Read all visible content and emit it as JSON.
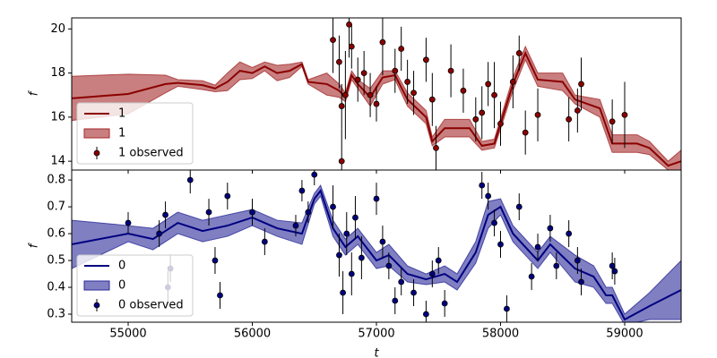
{
  "chart_data": [
    {
      "type": "line",
      "ylabel": "f",
      "legend": "lower left",
      "xlim": [
        54545,
        59455
      ],
      "xticks": [
        55000,
        56000,
        57000,
        58000,
        59000
      ],
      "ylim": [
        13.6,
        20.5
      ],
      "yticks": [
        14,
        16,
        18,
        20
      ],
      "series": [
        {
          "type": "line",
          "name": "1",
          "color": "#8b0000",
          "x": [
            54545,
            55000,
            55300,
            55400,
            55600,
            55700,
            55800,
            55900,
            56000,
            56100,
            56200,
            56300,
            56400,
            56450,
            56600,
            56700,
            56750,
            56800,
            56850,
            56950,
            57050,
            57150,
            57250,
            57400,
            57450,
            57550,
            57750,
            57850,
            57950,
            58100,
            58200,
            58300,
            58500,
            58600,
            58800,
            58900,
            59100,
            59200,
            59350,
            59455
          ],
          "values": [
            16.85,
            17.05,
            17.5,
            17.55,
            17.45,
            17.3,
            17.6,
            18.1,
            18.0,
            18.3,
            18.0,
            18.1,
            18.4,
            17.6,
            17.5,
            17.2,
            16.9,
            17.9,
            17.5,
            16.9,
            17.8,
            17.9,
            16.8,
            16.0,
            14.9,
            15.5,
            15.5,
            14.7,
            14.8,
            17.5,
            18.9,
            17.7,
            17.6,
            16.8,
            16.4,
            14.8,
            14.8,
            14.6,
            13.8,
            14.0
          ]
        },
        {
          "type": "band",
          "name": "1",
          "color": "#a52a2a",
          "x": [
            54545,
            55000,
            55300,
            55400,
            55600,
            55700,
            55800,
            55900,
            56000,
            56100,
            56200,
            56300,
            56400,
            56450,
            56600,
            56700,
            56750,
            56800,
            56850,
            56950,
            57050,
            57150,
            57250,
            57400,
            57450,
            57550,
            57750,
            57850,
            57950,
            58100,
            58200,
            58300,
            58500,
            58600,
            58800,
            58900,
            59100,
            59200,
            59350,
            59455
          ],
          "upper": [
            17.85,
            17.95,
            17.9,
            17.7,
            17.65,
            17.45,
            18.0,
            18.5,
            18.25,
            18.5,
            18.35,
            18.4,
            18.5,
            17.7,
            18.0,
            17.5,
            17.1,
            18.1,
            17.7,
            17.3,
            18.1,
            18.1,
            17.1,
            16.3,
            15.1,
            15.9,
            15.9,
            14.9,
            15.0,
            17.8,
            19.2,
            18.0,
            18.0,
            17.0,
            16.8,
            15.2,
            15.2,
            14.9,
            14.0,
            14.5
          ],
          "lower": [
            15.85,
            16.15,
            17.1,
            17.4,
            17.25,
            17.15,
            17.2,
            17.7,
            17.75,
            18.1,
            17.65,
            17.8,
            18.3,
            17.5,
            17.0,
            16.9,
            16.7,
            17.7,
            17.3,
            16.5,
            17.5,
            17.7,
            16.5,
            15.7,
            14.7,
            15.1,
            15.1,
            14.5,
            14.6,
            17.2,
            18.6,
            17.4,
            17.2,
            16.6,
            16.0,
            14.4,
            14.4,
            14.3,
            13.6,
            13.5
          ]
        },
        {
          "type": "errorbar",
          "name": "1 observed",
          "color": "#8b0000",
          "x": [
            56650,
            56700,
            56720,
            56720,
            56750,
            56780,
            56800,
            56850,
            56900,
            56950,
            57000,
            57050,
            57150,
            57200,
            57250,
            57300,
            57400,
            57450,
            57480,
            57600,
            57700,
            57800,
            57850,
            57900,
            57950,
            58000,
            58100,
            58150,
            58200,
            58300,
            58550,
            58620,
            58650,
            58900,
            59000
          ],
          "values": [
            19.5,
            18.5,
            16.5,
            14.0,
            17.0,
            20.2,
            19.2,
            17.7,
            18.0,
            17.0,
            16.6,
            19.4,
            18.1,
            19.1,
            17.6,
            17.1,
            18.6,
            16.8,
            14.6,
            18.1,
            17.2,
            15.9,
            16.2,
            17.5,
            17.0,
            15.7,
            17.6,
            18.9,
            15.3,
            16.1,
            15.9,
            16.3,
            17.5,
            15.8,
            16.1
          ],
          "errors": [
            1.5,
            1.2,
            1.0,
            1.5,
            2,
            1.5,
            1,
            1,
            1,
            1,
            0.8,
            1.5,
            1,
            1,
            1,
            1,
            1,
            1.2,
            1,
            1.2,
            1,
            1,
            1.2,
            1,
            1.5,
            1,
            1.2,
            0.8,
            1,
            1.2,
            1,
            1,
            1.2,
            1,
            1.5
          ]
        }
      ]
    },
    {
      "type": "line",
      "ylabel": "f",
      "xlabel": "t",
      "legend": "lower left",
      "xlim": [
        54545,
        59455
      ],
      "xticks": [
        55000,
        56000,
        57000,
        58000,
        59000
      ],
      "ylim": [
        0.27,
        0.837
      ],
      "yticks": [
        0.3,
        0.4,
        0.5,
        0.6,
        0.7,
        0.8
      ],
      "series": [
        {
          "type": "line",
          "name": "0",
          "color": "#000080",
          "x": [
            54545,
            55000,
            55200,
            55400,
            55600,
            55800,
            56000,
            56200,
            56400,
            56500,
            56550,
            56650,
            56750,
            56850,
            57000,
            57100,
            57250,
            57400,
            57550,
            57650,
            57800,
            57900,
            58000,
            58100,
            58300,
            58400,
            58600,
            58750,
            58850,
            58900,
            59000,
            59200,
            59455
          ],
          "values": [
            0.56,
            0.6,
            0.58,
            0.64,
            0.61,
            0.63,
            0.66,
            0.62,
            0.6,
            0.73,
            0.76,
            0.62,
            0.55,
            0.59,
            0.5,
            0.52,
            0.45,
            0.43,
            0.45,
            0.42,
            0.53,
            0.67,
            0.7,
            0.6,
            0.5,
            0.56,
            0.47,
            0.44,
            0.37,
            0.37,
            0.28,
            0.33,
            0.39
          ]
        },
        {
          "type": "band",
          "name": "0",
          "color": "#2a2a9a",
          "x": [
            54545,
            55000,
            55200,
            55400,
            55600,
            55800,
            56000,
            56200,
            56400,
            56500,
            56550,
            56650,
            56750,
            56850,
            57000,
            57100,
            57250,
            57400,
            57550,
            57650,
            57800,
            57900,
            58000,
            58100,
            58300,
            58400,
            58600,
            58750,
            58850,
            58900,
            59000,
            59200,
            59455
          ],
          "upper": [
            0.65,
            0.63,
            0.62,
            0.68,
            0.65,
            0.67,
            0.69,
            0.65,
            0.64,
            0.75,
            0.78,
            0.65,
            0.58,
            0.62,
            0.53,
            0.56,
            0.48,
            0.45,
            0.48,
            0.45,
            0.57,
            0.72,
            0.73,
            0.63,
            0.53,
            0.59,
            0.52,
            0.48,
            0.4,
            0.4,
            0.3,
            0.38,
            0.5
          ],
          "lower": [
            0.47,
            0.57,
            0.54,
            0.6,
            0.57,
            0.59,
            0.63,
            0.59,
            0.56,
            0.71,
            0.74,
            0.59,
            0.52,
            0.56,
            0.47,
            0.48,
            0.42,
            0.41,
            0.42,
            0.39,
            0.49,
            0.62,
            0.67,
            0.57,
            0.47,
            0.53,
            0.42,
            0.4,
            0.34,
            0.34,
            0.26,
            0.28,
            0.28
          ]
        },
        {
          "type": "errorbar",
          "name": "0 observed",
          "color": "#000080",
          "x": [
            55000,
            55250,
            55300,
            55320,
            55340,
            55500,
            55650,
            55700,
            55740,
            55800,
            56000,
            56100,
            56350,
            56400,
            56450,
            56500,
            56650,
            56700,
            56730,
            56760,
            56800,
            56830,
            56880,
            57000,
            57050,
            57100,
            57150,
            57200,
            57300,
            57400,
            57450,
            57500,
            57550,
            57850,
            57900,
            57950,
            58000,
            58050,
            58150,
            58250,
            58300,
            58400,
            58450,
            58550,
            58620,
            58650,
            58900,
            58920
          ],
          "values": [
            0.64,
            0.6,
            0.67,
            0.4,
            0.47,
            0.8,
            0.68,
            0.5,
            0.37,
            0.74,
            0.68,
            0.57,
            0.63,
            0.76,
            0.68,
            0.82,
            0.7,
            0.52,
            0.38,
            0.6,
            0.45,
            0.66,
            0.51,
            0.73,
            0.57,
            0.48,
            0.35,
            0.42,
            0.38,
            0.3,
            0.45,
            0.5,
            0.34,
            0.78,
            0.74,
            0.64,
            0.56,
            0.32,
            0.7,
            0.44,
            0.55,
            0.62,
            0.48,
            0.6,
            0.5,
            0.42,
            0.48,
            0.46
          ],
          "errors": [
            0.04,
            0.05,
            0.05,
            0.06,
            0.05,
            0.05,
            0.05,
            0.05,
            0.05,
            0.05,
            0.05,
            0.05,
            0.04,
            0.04,
            0.04,
            0.04,
            0.08,
            0.08,
            0.08,
            0.08,
            0.08,
            0.08,
            0.08,
            0.06,
            0.06,
            0.05,
            0.05,
            0.05,
            0.05,
            0.05,
            0.05,
            0.05,
            0.05,
            0.05,
            0.05,
            0.05,
            0.05,
            0.05,
            0.05,
            0.05,
            0.05,
            0.05,
            0.05,
            0.05,
            0.05,
            0.05,
            0.05,
            0.05
          ]
        }
      ]
    }
  ]
}
